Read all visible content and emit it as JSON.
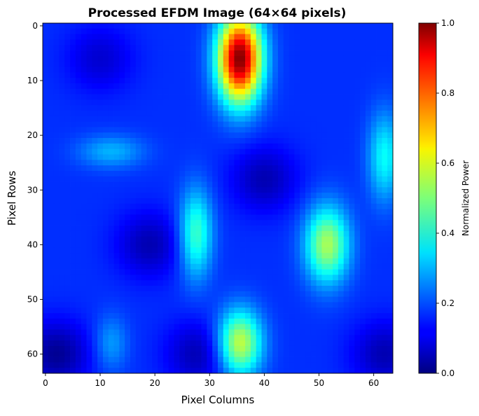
{
  "chart_data": {
    "type": "heatmap",
    "title": "Processed EFDM Image (64×64 pixels)",
    "xlabel": "Pixel Columns",
    "ylabel": "Pixel Rows",
    "xlim": [
      -0.5,
      63.5
    ],
    "ylim": [
      63.5,
      -0.5
    ],
    "x_ticks": [
      0,
      10,
      20,
      30,
      40,
      50,
      60
    ],
    "y_ticks": [
      0,
      10,
      20,
      30,
      40,
      50,
      60
    ],
    "colormap": "jet",
    "grid": false,
    "colorbar": {
      "label": "Normalized Power",
      "range": [
        0.0,
        1.0
      ],
      "ticks": [
        0.0,
        0.2,
        0.4,
        0.6,
        0.8,
        1.0
      ],
      "tick_labels": [
        "0.0",
        "0.2",
        "0.4",
        "0.6",
        "0.8",
        "1.0"
      ]
    },
    "background_value": 0.17,
    "peaks": [
      {
        "col": 35.5,
        "row": 6,
        "value": 1.0,
        "col_spread": 4,
        "row_spread": 8
      },
      {
        "col": 35.5,
        "row": 58,
        "value": 0.58,
        "col_spread": 4,
        "row_spread": 6
      },
      {
        "col": 51.5,
        "row": 40,
        "value": 0.54,
        "col_spread": 4,
        "row_spread": 7
      },
      {
        "col": 27.5,
        "row": 38,
        "value": 0.44,
        "col_spread": 3,
        "row_spread": 8
      },
      {
        "col": 62,
        "row": 24,
        "value": 0.38,
        "col_spread": 3,
        "row_spread": 8
      },
      {
        "col": 12,
        "row": 23,
        "value": 0.3,
        "col_spread": 6,
        "row_spread": 3
      },
      {
        "col": 12,
        "row": 58,
        "value": 0.28,
        "col_spread": 3,
        "row_spread": 5
      }
    ],
    "troughs": [
      {
        "col": 2,
        "row": 60,
        "value": 0.02
      },
      {
        "col": 19,
        "row": 40,
        "value": 0.05
      },
      {
        "col": 28,
        "row": 60,
        "value": 0.05
      },
      {
        "col": 40,
        "row": 28,
        "value": 0.05
      },
      {
        "col": 62,
        "row": 60,
        "value": 0.05
      },
      {
        "col": 10,
        "row": 6,
        "value": 0.08
      }
    ]
  }
}
